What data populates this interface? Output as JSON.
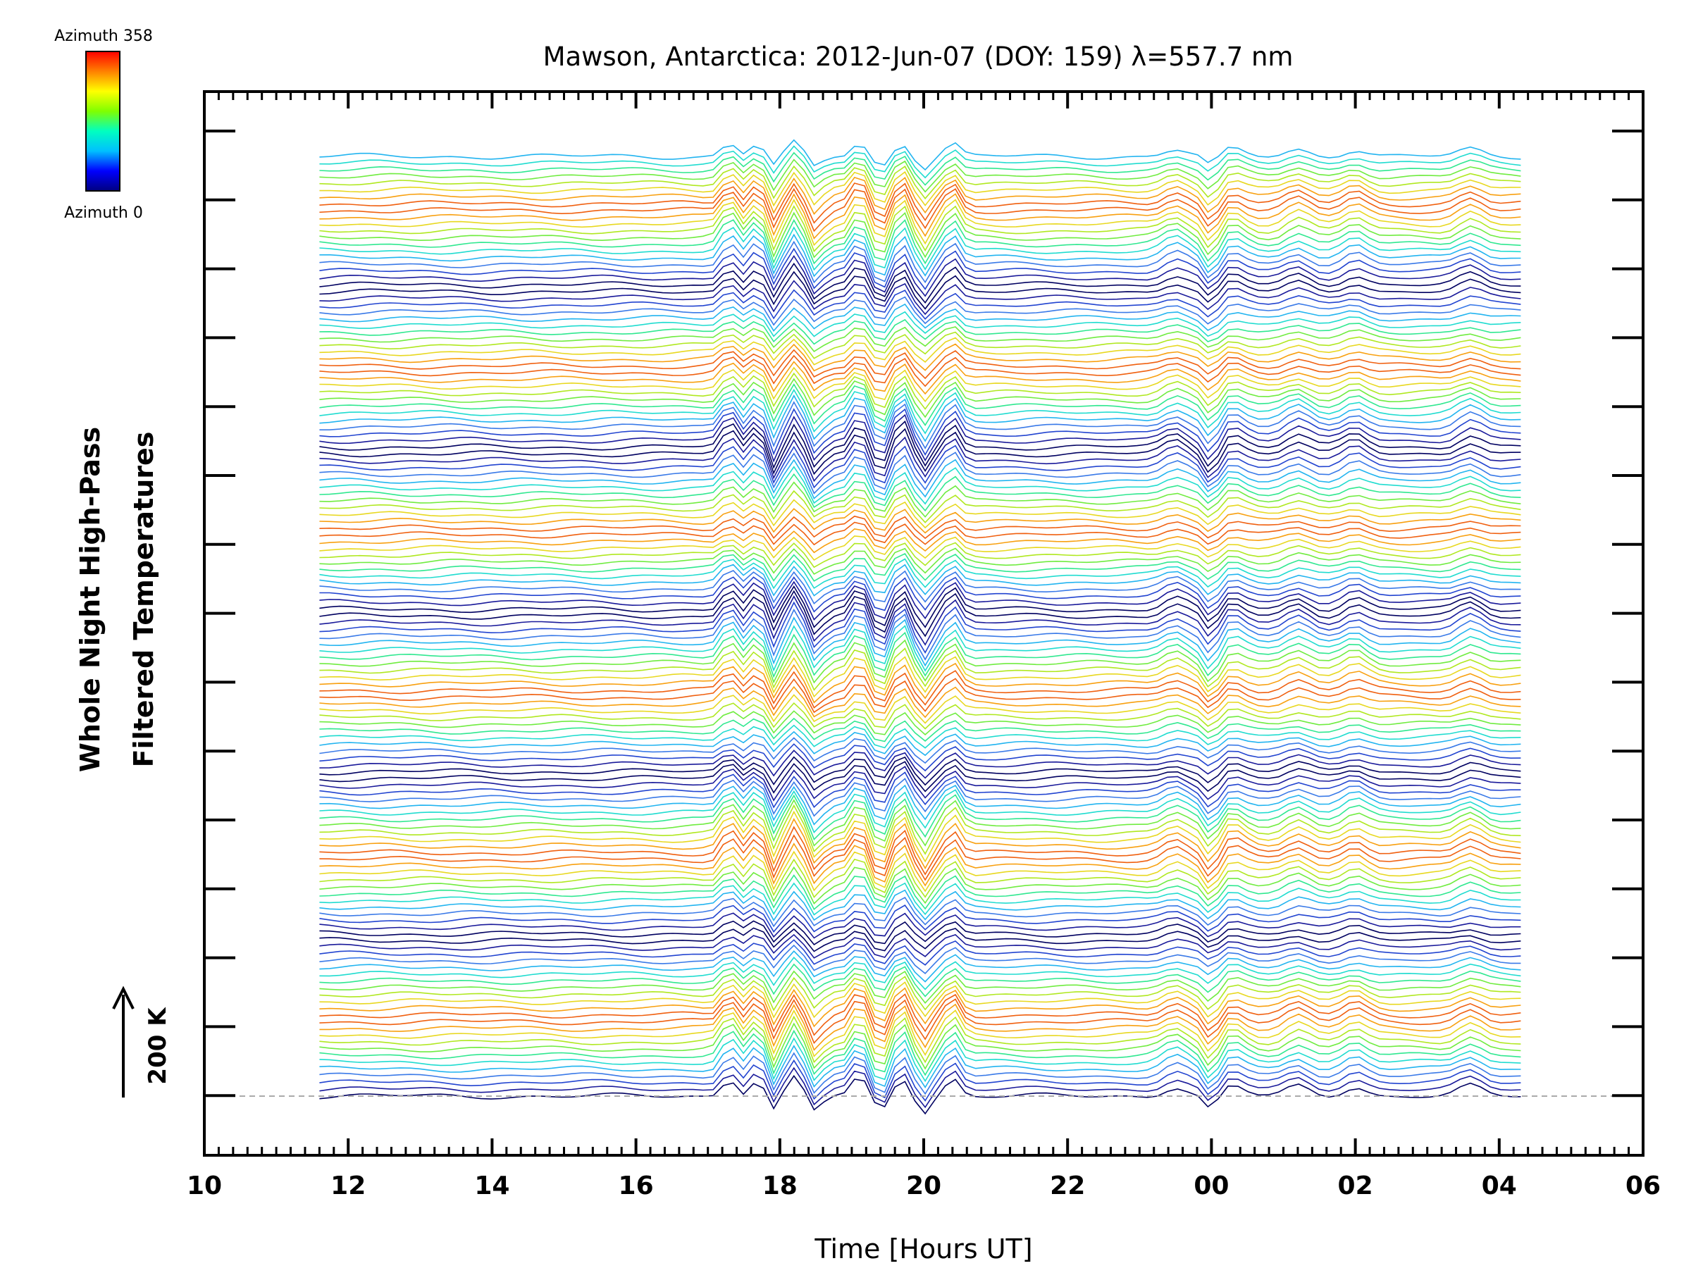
{
  "chart_data": {
    "type": "line",
    "title": "Mawson, Antarctica: 2012-Jun-07 (DOY: 159) λ=557.7 nm",
    "xlabel": "Time [Hours UT]",
    "ylabel_line1": "Whole Night High-Pass",
    "ylabel_line2": "Filtered Temperatures",
    "x_tick_labels": [
      "10",
      "12",
      "14",
      "16",
      "18",
      "20",
      "22",
      "00",
      "02",
      "04",
      "06"
    ],
    "xlim": [
      10,
      30
    ],
    "x_data_range": [
      11.6,
      28.3
    ],
    "scale_bar_label": "200 K",
    "colorbar": {
      "top_label": "Azimuth 358",
      "bottom_label": "Azimuth 0",
      "colors": [
        "#000080",
        "#0000ff",
        "#00c0ff",
        "#00ffc0",
        "#80ff00",
        "#ffff00",
        "#ff8000",
        "#ff0000"
      ]
    },
    "series_count": 140,
    "line_colors_cycle": [
      "#000060",
      "#1a1a9a",
      "#2244d0",
      "#3a7ae8",
      "#22b4f0",
      "#20dcd0",
      "#30e890",
      "#70ec40",
      "#b0e820",
      "#e8d820",
      "#f8a010",
      "#f06010"
    ],
    "features": {
      "peak_times_hours": [
        17.3,
        17.7,
        18.2,
        19.1,
        19.7,
        20.4,
        23.5,
        24.3,
        25.2,
        26.0,
        27.6
      ],
      "trough_times_hours": [
        17.9,
        18.5,
        19.4,
        20.0,
        24.0
      ]
    }
  }
}
